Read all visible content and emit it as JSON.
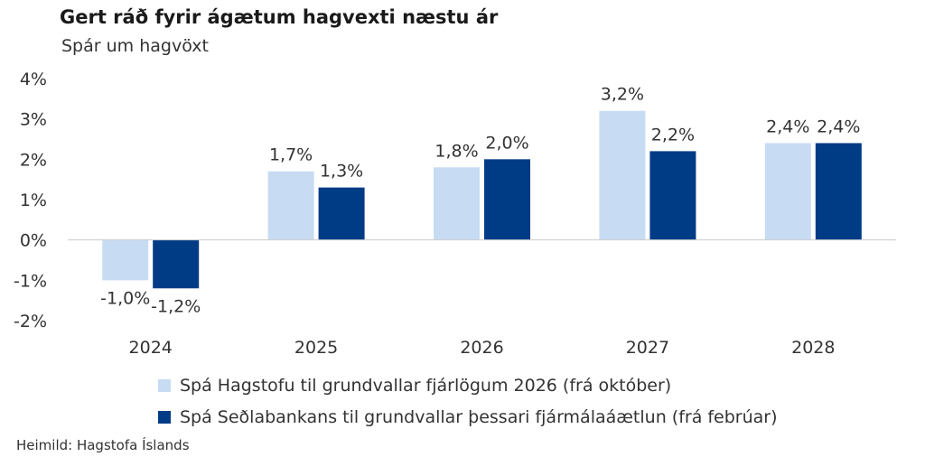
{
  "chart_data": {
    "type": "bar",
    "title": "Gert ráð fyrir ágætum hagvexti næstu ár",
    "subtitle": "Spár um hagvöxt",
    "categories": [
      "2024",
      "2025",
      "2026",
      "2027",
      "2028"
    ],
    "series": [
      {
        "name": "Spá Hagstofu til grundvallar fjárlögum 2026 (frá október)",
        "color": "#c7dcf3",
        "values": [
          -1.0,
          1.7,
          1.8,
          3.2,
          2.4
        ],
        "labels": [
          "-1,0%",
          "1,7%",
          "1,8%",
          "3,2%",
          "2,4%"
        ]
      },
      {
        "name": "Spá Seðlabankans til grundvallar þessari fjármálaáætlun (frá febrúar)",
        "color": "#003b86",
        "values": [
          -1.2,
          1.3,
          2.0,
          2.2,
          2.4
        ],
        "labels": [
          "-1,2%",
          "1,3%",
          "2,0%",
          "2,2%",
          "2,4%"
        ]
      }
    ],
    "ylim": [
      -2,
      4
    ],
    "yticks": [
      4,
      3,
      2,
      1,
      0,
      -1,
      -2
    ],
    "ytick_labels": [
      "4%",
      "3%",
      "2%",
      "1%",
      "0%",
      "-1%",
      "-2%"
    ],
    "legend_position": "bottom",
    "grid": false
  },
  "source": "Heimild: Hagstofa Íslands"
}
